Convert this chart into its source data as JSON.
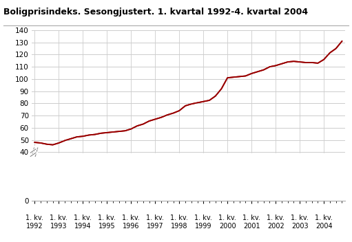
{
  "title": "Boligprisindeks. Sesongjustert. 1. kvartal 1992-4. kvartal 2004",
  "line_color": "#990000",
  "background_color": "#ffffff",
  "grid_color": "#cccccc",
  "ylim": [
    0,
    140
  ],
  "yticks_shown": [
    0,
    40,
    50,
    60,
    70,
    80,
    90,
    100,
    110,
    120,
    130,
    140
  ],
  "x_labels_top": [
    "1. kv.",
    "1. kv.",
    "1. kv.",
    "1. kv.",
    "1. kv.",
    "1. kv.",
    "1. kv.",
    "1. kv.",
    "1. kv.",
    "1. kv.",
    "1. kv.",
    "1. kv.",
    "1. kv."
  ],
  "x_labels_bot": [
    "1992",
    "1993",
    "1994",
    "1995",
    "1996",
    "1997",
    "1998",
    "1999",
    "2000",
    "2001",
    "2002",
    "2003",
    "2004"
  ],
  "values": [
    48.0,
    47.5,
    46.5,
    46.0,
    47.5,
    49.5,
    51.0,
    52.5,
    53.0,
    54.0,
    54.5,
    55.5,
    56.0,
    56.5,
    57.0,
    57.5,
    59.0,
    61.5,
    63.0,
    65.5,
    67.0,
    68.5,
    70.5,
    72.0,
    74.0,
    78.0,
    79.5,
    80.5,
    81.5,
    82.5,
    86.0,
    92.0,
    101.0,
    101.5,
    102.0,
    102.5,
    104.5,
    106.0,
    107.5,
    110.0,
    111.0,
    112.5,
    114.0,
    114.5,
    114.0,
    113.5,
    113.5,
    113.0,
    116.0,
    121.5,
    125.0,
    131.0
  ],
  "grid_yticks": [
    40,
    50,
    60,
    70,
    80,
    90,
    100,
    110,
    120,
    130,
    140
  ]
}
